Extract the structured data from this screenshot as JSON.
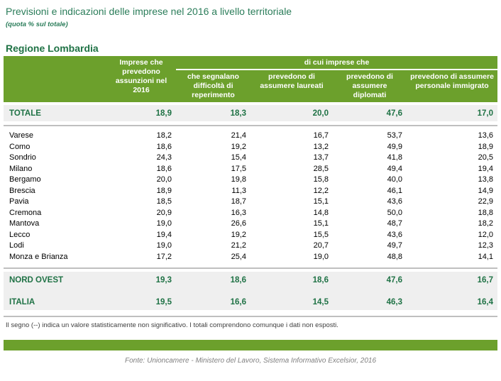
{
  "title": "Previsioni e indicazioni delle imprese nel 2016 a livello territoriale",
  "subtitle": "(quota % sul totale)",
  "region_heading": "Regione Lombardia",
  "colors": {
    "accent_green": "#6CA02C",
    "dark_green_text": "#1F7245",
    "title_green": "#2B7D5A",
    "summary_row_gray": "#EFEFEF",
    "rule_gray": "#BFBFBF"
  },
  "chart_data": {
    "type": "table",
    "title": "Previsioni e indicazioni delle imprese nel 2016 a livello territoriale (quota % sul totale) - Regione Lombardia",
    "group_header": "di cui imprese che",
    "columns": [
      "",
      "Imprese che prevedono assunzioni nel 2016",
      "che segnalano difficoltà di reperimento",
      "prevedono di assumere laureati",
      "prevedono di assumere diplomati",
      "prevedono di assumere personale immigrato"
    ],
    "total_row": {
      "label": "TOTALE",
      "values": [
        "18,9",
        "18,3",
        "20,0",
        "47,6",
        "17,0"
      ]
    },
    "province_rows": [
      {
        "label": "Varese",
        "values": [
          "18,2",
          "21,4",
          "16,7",
          "53,7",
          "13,6"
        ]
      },
      {
        "label": "Como",
        "values": [
          "18,6",
          "19,2",
          "13,2",
          "49,9",
          "18,9"
        ]
      },
      {
        "label": "Sondrio",
        "values": [
          "24,3",
          "15,4",
          "13,7",
          "41,8",
          "20,5"
        ]
      },
      {
        "label": "Milano",
        "values": [
          "18,6",
          "17,5",
          "28,5",
          "49,4",
          "19,4"
        ]
      },
      {
        "label": "Bergamo",
        "values": [
          "20,0",
          "19,8",
          "15,8",
          "40,0",
          "13,8"
        ]
      },
      {
        "label": "Brescia",
        "values": [
          "18,9",
          "11,3",
          "12,2",
          "46,1",
          "14,9"
        ]
      },
      {
        "label": "Pavia",
        "values": [
          "18,5",
          "18,7",
          "15,1",
          "43,6",
          "22,9"
        ]
      },
      {
        "label": "Cremona",
        "values": [
          "20,9",
          "16,3",
          "14,8",
          "50,0",
          "18,8"
        ]
      },
      {
        "label": "Mantova",
        "values": [
          "19,0",
          "26,6",
          "15,1",
          "48,7",
          "18,2"
        ]
      },
      {
        "label": "Lecco",
        "values": [
          "19,4",
          "19,2",
          "15,5",
          "43,6",
          "12,0"
        ]
      },
      {
        "label": "Lodi",
        "values": [
          "19,0",
          "21,2",
          "20,7",
          "49,7",
          "12,3"
        ]
      },
      {
        "label": "Monza e Brianza",
        "values": [
          "17,2",
          "25,4",
          "19,0",
          "48,8",
          "14,1"
        ]
      }
    ],
    "summary_rows": [
      {
        "label": "NORD OVEST",
        "values": [
          "19,3",
          "18,6",
          "18,6",
          "47,6",
          "16,7"
        ]
      },
      {
        "label": "ITALIA",
        "values": [
          "19,5",
          "16,6",
          "14,5",
          "46,3",
          "16,4"
        ]
      }
    ]
  },
  "note": "Il segno (--) indica un valore statisticamente non significativo. I totali comprendono comunque i dati non esposti.",
  "source": "Fonte: Unioncamere - Ministero del Lavoro, Sistema Informativo Excelsior, 2016"
}
